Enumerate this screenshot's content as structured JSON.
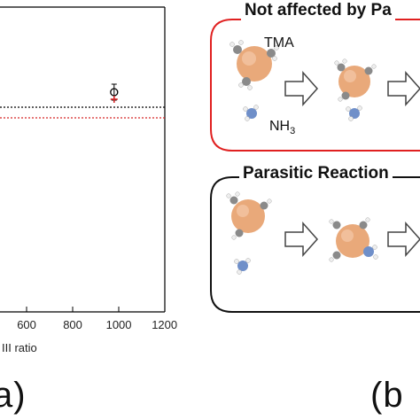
{
  "panel_a": {
    "letter": "a)",
    "xlabel_partial": "III ratio",
    "chart_data": {
      "type": "scatter",
      "x_ticks": [
        600,
        800,
        1000,
        1200
      ],
      "x_tick_labels": [
        "600",
        "800",
        "1000",
        "1200"
      ],
      "series": [
        {
          "color": "#000000",
          "marker": "open-circle",
          "x": [
            980
          ],
          "y_rel": [
            0.75
          ]
        },
        {
          "color": "#d62728",
          "marker": "plus",
          "x": [
            980
          ],
          "y_rel": [
            0.72
          ]
        }
      ],
      "reference_lines": [
        {
          "color": "#000000",
          "style": "dotted"
        },
        {
          "color": "#d62728",
          "style": "dotted"
        }
      ],
      "grid": false
    }
  },
  "panel_b": {
    "letter": "(b",
    "box1": {
      "title": "Not affected by Pa",
      "border_color": "#e02020",
      "tma_label": "TMA",
      "nh3_label": "NH",
      "nh3_sub": "3"
    },
    "box2": {
      "title": "Parasitic Reaction",
      "border_color": "#111111"
    }
  },
  "colors": {
    "al_atom": "#e9a97a",
    "c_atom": "#8a8a8a",
    "n_atom": "#6f8fc9",
    "h_atom": "#f4f4f4"
  }
}
